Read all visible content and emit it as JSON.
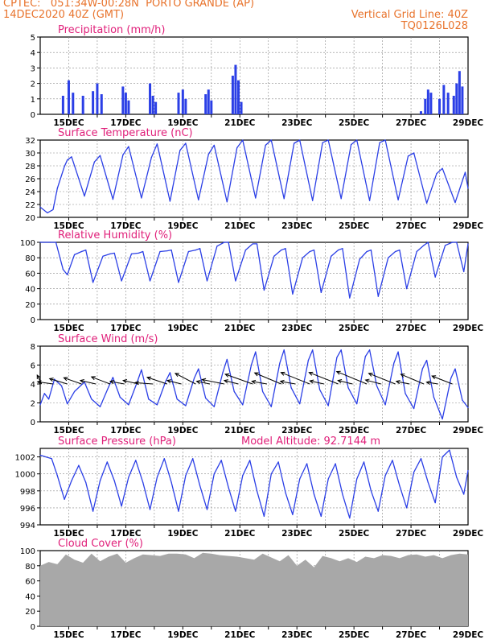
{
  "header": {
    "line1_left": "CPTEC:   051:34W-00:28N  PORTO GRANDE (AP)",
    "line2_left": "14DEC2020 40Z (GMT)",
    "line2_right": "Vertical Grid Line: 40Z",
    "line3_right": "TQ0126L028"
  },
  "colors": {
    "header": "#e8732c",
    "title": "#e0207a",
    "line": "#2b3fe6",
    "cloud": "#a8a8a8",
    "arrow": "#000000"
  },
  "chart_data": [
    {
      "type": "bar",
      "title": "Precipitation (mm/h)",
      "xlabels": [
        "15DEC",
        "17DEC",
        "19DEC",
        "21DEC",
        "23DEC",
        "25DEC",
        "27DEC",
        "29DEC"
      ],
      "ylim": [
        0,
        5
      ],
      "yticks": [
        0,
        1,
        2,
        3,
        4,
        5
      ],
      "x_days": [
        14.8,
        15.0,
        15.15,
        15.5,
        15.85,
        16.0,
        16.15,
        16.9,
        17.0,
        17.1,
        17.85,
        17.95,
        18.05,
        18.85,
        19.0,
        19.1,
        19.8,
        19.9,
        20.0,
        20.75,
        20.85,
        20.95,
        21.05,
        27.35,
        27.5,
        27.6,
        27.7,
        28.0,
        28.15,
        28.3,
        28.5,
        28.6,
        28.7,
        28.8
      ],
      "values": [
        1.2,
        2.2,
        1.4,
        1.2,
        1.5,
        2.0,
        1.3,
        1.8,
        1.4,
        0.9,
        2.0,
        1.2,
        0.8,
        1.4,
        1.6,
        1.0,
        1.3,
        1.6,
        0.9,
        2.5,
        3.2,
        2.2,
        0.8,
        0.2,
        1.0,
        1.6,
        1.4,
        1.0,
        1.9,
        1.4,
        1.2,
        2.0,
        2.8,
        1.8
      ]
    },
    {
      "type": "line",
      "title": "Surface Temperature (nC)",
      "xlabels": [
        "15DEC",
        "17DEC",
        "19DEC",
        "21DEC",
        "23DEC",
        "25DEC",
        "27DEC",
        "29DEC"
      ],
      "ylim": [
        20,
        32
      ],
      "yticks": [
        20,
        22,
        24,
        26,
        28,
        30,
        32
      ],
      "x_days": [
        14.0,
        14.25,
        14.45,
        14.6,
        14.85,
        14.95,
        15.1,
        15.55,
        15.9,
        16.1,
        16.55,
        16.9,
        17.1,
        17.55,
        17.9,
        18.1,
        18.55,
        18.9,
        19.1,
        19.55,
        19.9,
        20.1,
        20.55,
        20.9,
        21.1,
        21.55,
        21.9,
        22.1,
        22.55,
        22.9,
        23.1,
        23.55,
        23.9,
        24.1,
        24.55,
        24.9,
        25.1,
        25.55,
        25.9,
        26.1,
        26.55,
        26.9,
        27.1,
        27.55,
        27.9,
        28.1,
        28.55,
        28.9,
        29.0
      ],
      "values": [
        21.6,
        20.7,
        21.2,
        24.5,
        27.9,
        28.9,
        29.4,
        23.3,
        28.6,
        29.6,
        22.8,
        29.7,
        31.0,
        23.0,
        29.3,
        31.4,
        22.5,
        30.4,
        31.5,
        22.7,
        29.8,
        31.2,
        22.4,
        30.8,
        32.0,
        23.0,
        31.2,
        32.0,
        22.9,
        31.5,
        32.0,
        22.6,
        31.6,
        32.0,
        22.9,
        31.3,
        32.0,
        22.6,
        31.6,
        32.0,
        22.7,
        29.5,
        30.0,
        22.2,
        26.8,
        27.6,
        22.3,
        27.0,
        24.5
      ]
    },
    {
      "type": "line",
      "title": "Relative Humidity (%)",
      "xlabels": [
        "15DEC",
        "17DEC",
        "19DEC",
        "21DEC",
        "23DEC",
        "25DEC",
        "27DEC",
        "29DEC"
      ],
      "ylim": [
        0,
        100
      ],
      "yticks": [
        0,
        20,
        40,
        60,
        80,
        100
      ],
      "x_days": [
        14.0,
        14.35,
        14.55,
        14.8,
        14.95,
        15.2,
        15.45,
        15.6,
        15.85,
        16.2,
        16.45,
        16.6,
        16.85,
        17.2,
        17.45,
        17.6,
        17.85,
        18.2,
        18.45,
        18.6,
        18.85,
        19.2,
        19.45,
        19.6,
        19.85,
        20.2,
        20.45,
        20.6,
        20.85,
        21.2,
        21.45,
        21.6,
        21.85,
        22.2,
        22.45,
        22.6,
        22.85,
        23.2,
        23.45,
        23.6,
        23.85,
        24.2,
        24.45,
        24.6,
        24.85,
        25.2,
        25.45,
        25.6,
        25.85,
        26.2,
        26.45,
        26.6,
        26.85,
        27.2,
        27.45,
        27.6,
        27.85,
        28.2,
        28.45,
        28.6,
        28.85,
        29.0
      ],
      "values": [
        100,
        100,
        100,
        65,
        58,
        84,
        88,
        90,
        48,
        82,
        85,
        86,
        50,
        85,
        86,
        88,
        50,
        88,
        89,
        90,
        48,
        88,
        90,
        92,
        50,
        95,
        100,
        100,
        50,
        90,
        98,
        98,
        38,
        82,
        90,
        92,
        33,
        80,
        88,
        90,
        35,
        82,
        90,
        92,
        28,
        78,
        88,
        90,
        30,
        80,
        88,
        90,
        40,
        88,
        96,
        100,
        55,
        96,
        100,
        100,
        62,
        98
      ]
    },
    {
      "type": "line",
      "title": "Surface Wind (m/s)",
      "xlabels": [
        "15DEC",
        "17DEC",
        "19DEC",
        "21DEC",
        "23DEC",
        "25DEC",
        "27DEC",
        "29DEC"
      ],
      "ylim": [
        0,
        8
      ],
      "yticks": [
        0,
        2,
        4,
        6,
        8
      ],
      "x_days": [
        14.0,
        14.15,
        14.3,
        14.5,
        14.75,
        14.95,
        15.2,
        15.55,
        15.8,
        16.1,
        16.4,
        16.55,
        16.8,
        17.1,
        17.4,
        17.55,
        17.8,
        18.1,
        18.4,
        18.55,
        18.8,
        19.1,
        19.4,
        19.55,
        19.8,
        20.1,
        20.4,
        20.55,
        20.8,
        21.1,
        21.4,
        21.55,
        21.8,
        22.1,
        22.4,
        22.55,
        22.8,
        23.1,
        23.4,
        23.55,
        23.8,
        24.1,
        24.4,
        24.55,
        24.8,
        25.1,
        25.4,
        25.55,
        25.8,
        26.1,
        26.4,
        26.55,
        26.8,
        27.1,
        27.4,
        27.55,
        27.8,
        28.1,
        28.4,
        28.55,
        28.8,
        29.0
      ],
      "values": [
        1.8,
        3.0,
        2.4,
        4.5,
        3.8,
        1.9,
        3.2,
        4.2,
        2.4,
        1.6,
        3.7,
        4.7,
        2.6,
        1.8,
        4.2,
        5.5,
        2.4,
        1.8,
        4.3,
        5.2,
        2.4,
        1.7,
        4.6,
        5.6,
        2.5,
        1.6,
        5.2,
        6.6,
        3.2,
        1.8,
        6.0,
        7.4,
        3.2,
        1.6,
        6.2,
        7.6,
        3.6,
        1.9,
        6.5,
        7.6,
        3.4,
        1.7,
        6.8,
        7.6,
        3.6,
        1.9,
        6.9,
        7.6,
        3.8,
        1.8,
        6.2,
        7.4,
        3.0,
        1.4,
        5.6,
        6.5,
        2.6,
        0.3,
        4.6,
        5.6,
        2.3,
        1.5
      ],
      "wind_arrows": [
        {
          "day": 14.05,
          "u": -1.0,
          "v": 2.0
        },
        {
          "day": 14.45,
          "u": -3.5,
          "v": 0.5
        },
        {
          "day": 14.95,
          "u": -4.0,
          "v": 1.2
        },
        {
          "day": 15.45,
          "u": -4.0,
          "v": 1.4
        },
        {
          "day": 15.95,
          "u": -3.5,
          "v": 0.8
        },
        {
          "day": 16.45,
          "u": -4.2,
          "v": 1.6
        },
        {
          "day": 16.95,
          "u": -3.2,
          "v": 0.6
        },
        {
          "day": 17.45,
          "u": -3.5,
          "v": 0.8
        },
        {
          "day": 17.95,
          "u": -4.0,
          "v": 0.3
        },
        {
          "day": 18.45,
          "u": -4.5,
          "v": 1.5
        },
        {
          "day": 18.95,
          "u": -3.2,
          "v": 0.8
        },
        {
          "day": 19.45,
          "u": -4.6,
          "v": 2.4
        },
        {
          "day": 19.95,
          "u": -3.0,
          "v": 0.6
        },
        {
          "day": 20.45,
          "u": -5.0,
          "v": 1.0
        },
        {
          "day": 20.95,
          "u": -3.2,
          "v": 0.8
        },
        {
          "day": 21.45,
          "u": -6.2,
          "v": 2.2
        },
        {
          "day": 21.95,
          "u": -3.4,
          "v": 0.6
        },
        {
          "day": 22.45,
          "u": -6.0,
          "v": 2.5
        },
        {
          "day": 22.95,
          "u": -3.4,
          "v": 0.6
        },
        {
          "day": 23.45,
          "u": -6.5,
          "v": 2.6
        },
        {
          "day": 23.95,
          "u": -3.2,
          "v": 0.7
        },
        {
          "day": 24.45,
          "u": -6.6,
          "v": 2.6
        },
        {
          "day": 24.95,
          "u": -3.3,
          "v": 0.8
        },
        {
          "day": 25.45,
          "u": -6.8,
          "v": 2.8
        },
        {
          "day": 25.95,
          "u": -3.5,
          "v": 0.9
        },
        {
          "day": 26.45,
          "u": -6.0,
          "v": 2.4
        },
        {
          "day": 26.95,
          "u": -3.0,
          "v": 0.6
        },
        {
          "day": 27.45,
          "u": -5.2,
          "v": 2.2
        },
        {
          "day": 27.95,
          "u": -2.6,
          "v": 0.4
        },
        {
          "day": 28.45,
          "u": -4.6,
          "v": 1.8
        }
      ]
    },
    {
      "type": "line",
      "title": "Surface Pressure (hPa)",
      "annotation": "Model Altitude: 92.7144 m",
      "xlabels": [
        "15DEC",
        "17DEC",
        "19DEC",
        "21DEC",
        "23DEC",
        "25DEC",
        "27DEC",
        "29DEC"
      ],
      "ylim": [
        994,
        1003
      ],
      "yticks": [
        994,
        996,
        998,
        1000,
        1002
      ],
      "x_days": [
        14.0,
        14.2,
        14.4,
        14.6,
        14.85,
        15.1,
        15.35,
        15.6,
        15.85,
        16.1,
        16.35,
        16.6,
        16.85,
        17.1,
        17.35,
        17.6,
        17.85,
        18.1,
        18.35,
        18.6,
        18.85,
        19.1,
        19.35,
        19.6,
        19.85,
        20.1,
        20.35,
        20.6,
        20.85,
        21.1,
        21.35,
        21.6,
        21.85,
        22.1,
        22.35,
        22.6,
        22.85,
        23.1,
        23.35,
        23.6,
        23.85,
        24.1,
        24.35,
        24.6,
        24.85,
        25.1,
        25.35,
        25.6,
        25.85,
        26.1,
        26.35,
        26.6,
        26.85,
        27.1,
        27.35,
        27.6,
        27.85,
        28.1,
        28.35,
        28.6,
        28.85,
        29.0
      ],
      "values": [
        1002.2,
        1002.0,
        1001.8,
        999.8,
        997.0,
        999.2,
        1001.0,
        999.0,
        995.6,
        999.2,
        1001.4,
        999.2,
        996.2,
        999.6,
        1001.6,
        999.0,
        995.8,
        999.6,
        1001.8,
        999.0,
        995.6,
        999.8,
        1001.8,
        998.6,
        995.8,
        1000.0,
        1001.6,
        998.4,
        995.6,
        999.8,
        1001.6,
        998.0,
        995.0,
        1000.0,
        1001.4,
        997.8,
        995.2,
        999.4,
        1001.2,
        997.6,
        995.0,
        999.4,
        1001.2,
        997.6,
        994.8,
        999.4,
        1001.4,
        998.0,
        995.6,
        999.8,
        1001.6,
        998.6,
        996.0,
        1000.2,
        1001.8,
        999.0,
        996.6,
        1002.0,
        1002.8,
        999.6,
        997.6,
        1000.4
      ]
    },
    {
      "type": "area",
      "title": "Cloud Cover (%)",
      "xlabels": [
        "15DEC",
        "17DEC",
        "19DEC",
        "21DEC",
        "23DEC",
        "25DEC",
        "27DEC",
        "29DEC"
      ],
      "ylim": [
        0,
        100
      ],
      "yticks": [
        0,
        20,
        40,
        60,
        80,
        100
      ],
      "x_days": [
        14.0,
        14.3,
        14.6,
        14.9,
        15.2,
        15.5,
        15.8,
        16.1,
        16.4,
        16.7,
        17.0,
        17.3,
        17.6,
        17.9,
        18.2,
        18.5,
        18.8,
        19.1,
        19.4,
        19.7,
        20.0,
        20.3,
        20.6,
        20.9,
        21.2,
        21.5,
        21.8,
        22.1,
        22.4,
        22.7,
        23.0,
        23.3,
        23.6,
        23.9,
        24.2,
        24.5,
        24.8,
        25.1,
        25.4,
        25.7,
        26.0,
        26.3,
        26.6,
        26.9,
        27.2,
        27.5,
        27.8,
        28.1,
        28.4,
        28.7,
        29.0
      ],
      "values": [
        80,
        85,
        82,
        95,
        88,
        84,
        96,
        86,
        92,
        96,
        84,
        90,
        95,
        94,
        93,
        96,
        96,
        95,
        90,
        97,
        96,
        94,
        93,
        92,
        90,
        88,
        96,
        91,
        86,
        94,
        80,
        88,
        78,
        93,
        90,
        86,
        90,
        85,
        92,
        90,
        94,
        93,
        90,
        94,
        95,
        92,
        94,
        90,
        94,
        96,
        95
      ]
    }
  ]
}
